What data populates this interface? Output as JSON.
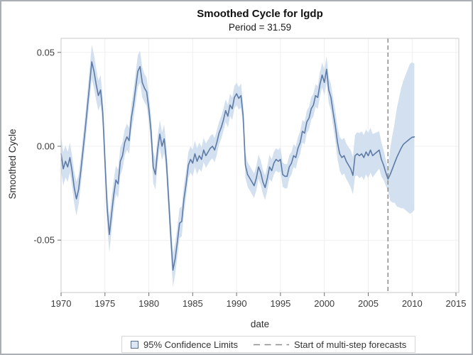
{
  "title": "Smoothed Cycle for lgdp",
  "subtitle": "Period = 31.59",
  "legend": [
    {
      "swatch": "confidence-band",
      "label": "95% Confidence Limits"
    },
    {
      "swatch": "forecast-dash",
      "label": "Start of multi-step forecasts"
    }
  ],
  "colors": {
    "line": "#5d7ba6",
    "band": "#d3e0ef",
    "forecast_dash": "#8c8c8c",
    "grid": "#f0f0f0",
    "frame": "#c9c9c9",
    "tick": "#6e6e6e",
    "tick_label": "#3c3c3c",
    "legend_swatch_fill": "#dce7f3",
    "legend_swatch_border": "#5b6e87"
  },
  "chart_data": {
    "type": "line",
    "title": "Smoothed Cycle for lgdp",
    "subtitle": "Period = 31.59",
    "axes": {
      "x": {
        "label": "date",
        "min": 1970,
        "max": 2015.32,
        "ticks": [
          1970,
          1975,
          1980,
          1985,
          1990,
          1995,
          2000,
          2005,
          2010,
          2015
        ]
      },
      "y": {
        "label": "Smoothed Cycle",
        "min": -0.0779,
        "max": 0.0575,
        "ticks": [
          {
            "v": 0.05,
            "label": "0.05"
          },
          {
            "v": 0.0,
            "label": "0.00"
          },
          {
            "v": -0.05,
            "label": "-0.05"
          }
        ]
      }
    },
    "grid": true,
    "legend_position": "bottom",
    "forecast_start": 2007.25,
    "series": {
      "name": "smoothed cycle",
      "start": 1970.0,
      "step": 0.25,
      "values": [
        -0.004,
        -0.012,
        -0.008,
        -0.011,
        -0.006,
        -0.013,
        -0.022,
        -0.028,
        -0.023,
        -0.013,
        -0.002,
        0.009,
        0.021,
        0.033,
        0.045,
        0.04,
        0.033,
        0.027,
        0.03,
        0.018,
        -0.008,
        -0.033,
        -0.047,
        -0.036,
        -0.026,
        -0.018,
        -0.02,
        -0.008,
        -0.005,
        0.002,
        0.005,
        0.003,
        0.015,
        0.022,
        0.031,
        0.04,
        0.0425,
        0.034,
        0.031,
        0.029,
        0.02,
        0.008,
        -0.011,
        -0.015,
        -0.002,
        0.0065,
        0.0,
        0.004,
        -0.008,
        -0.028,
        -0.048,
        -0.066,
        -0.06,
        -0.051,
        -0.041,
        -0.04,
        -0.028,
        -0.02,
        -0.01,
        -0.007,
        -0.009,
        -0.004,
        -0.008,
        -0.005,
        -0.007,
        -0.002,
        -0.005,
        -0.003,
        -0.001,
        0.0,
        -0.002,
        0.002,
        0.007,
        0.01,
        0.014,
        0.019,
        0.016,
        0.022,
        0.02,
        0.026,
        0.028,
        0.0255,
        0.027,
        0.016,
        -0.01,
        -0.015,
        -0.017,
        -0.019,
        -0.021,
        -0.017,
        -0.011,
        -0.014,
        -0.019,
        -0.022,
        -0.017,
        -0.011,
        -0.013,
        -0.009,
        -0.007,
        -0.008,
        -0.007,
        -0.015,
        -0.016,
        -0.016,
        -0.011,
        -0.009,
        -0.005,
        -0.006,
        -0.001,
        0.002,
        0.008,
        0.007,
        0.013,
        0.015,
        0.02,
        0.022,
        0.027,
        0.026,
        0.033,
        0.038,
        0.034,
        0.041,
        0.03,
        0.026,
        0.018,
        0.011,
        0.002,
        -0.004,
        -0.006,
        -0.005,
        -0.008,
        -0.01,
        -0.012,
        -0.0155,
        -0.005,
        -0.004,
        -0.005,
        -0.004,
        -0.006,
        -0.003,
        -0.005,
        -0.002,
        -0.005,
        -0.004,
        -0.003,
        -0.002,
        -0.007,
        -0.01,
        -0.014,
        -0.0175,
        -0.015,
        -0.012,
        -0.009,
        -0.006,
        -0.0035,
        -0.001,
        0.001,
        0.002,
        0.003,
        0.004,
        0.0048,
        0.005
      ],
      "ci_half": [
        0.009,
        0.009,
        0.0085,
        0.008,
        0.008,
        0.008,
        0.0085,
        0.009,
        0.008,
        0.0075,
        0.0075,
        0.0075,
        0.008,
        0.0085,
        0.009,
        0.009,
        0.0085,
        0.008,
        0.008,
        0.008,
        0.0085,
        0.009,
        0.0095,
        0.009,
        0.008,
        0.0075,
        0.0075,
        0.0075,
        0.007,
        0.007,
        0.007,
        0.007,
        0.007,
        0.0075,
        0.008,
        0.0085,
        0.0085,
        0.008,
        0.0075,
        0.0075,
        0.0075,
        0.008,
        0.0085,
        0.008,
        0.0075,
        0.0075,
        0.0075,
        0.0075,
        0.008,
        0.0085,
        0.009,
        0.009,
        0.0085,
        0.008,
        0.008,
        0.008,
        0.0075,
        0.007,
        0.007,
        0.007,
        0.007,
        0.007,
        0.007,
        0.007,
        0.0065,
        0.0065,
        0.0065,
        0.0065,
        0.0065,
        0.0065,
        0.0065,
        0.0065,
        0.006,
        0.006,
        0.006,
        0.006,
        0.006,
        0.006,
        0.006,
        0.006,
        0.006,
        0.006,
        0.0065,
        0.0065,
        0.0065,
        0.0065,
        0.0065,
        0.0065,
        0.0065,
        0.0065,
        0.0065,
        0.0065,
        0.0065,
        0.0065,
        0.0065,
        0.0065,
        0.006,
        0.006,
        0.006,
        0.006,
        0.0065,
        0.0065,
        0.0065,
        0.0065,
        0.006,
        0.006,
        0.006,
        0.006,
        0.006,
        0.006,
        0.006,
        0.006,
        0.006,
        0.006,
        0.006,
        0.006,
        0.006,
        0.006,
        0.0065,
        0.0065,
        0.007,
        0.007,
        0.007,
        0.007,
        0.0075,
        0.008,
        0.0085,
        0.009,
        0.0095,
        0.0095,
        0.0095,
        0.0095,
        0.01,
        0.01,
        0.011,
        0.0115,
        0.012,
        0.012,
        0.012,
        0.012,
        0.012,
        0.012,
        0.0115,
        0.011,
        0.0105,
        0.01,
        0.009,
        0.008,
        0.007,
        0.006,
        0.014,
        0.018,
        0.021,
        0.026,
        0.029,
        0.032,
        0.034,
        0.036,
        0.038,
        0.04,
        0.04,
        0.039
      ]
    }
  }
}
